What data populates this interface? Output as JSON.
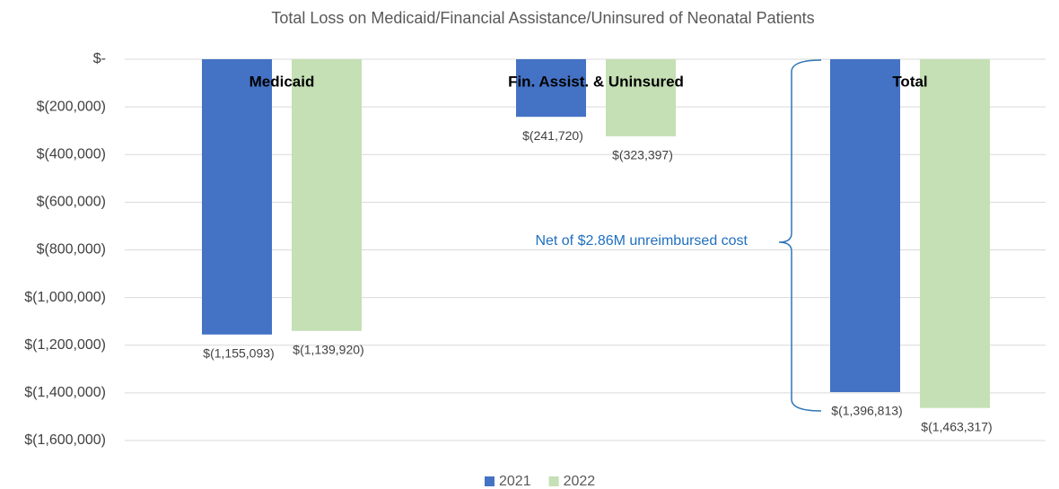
{
  "chart_data": {
    "type": "bar",
    "title": "Total Loss on Medicaid/Financial Assistance/Uninsured of Neonatal Patients",
    "categories": [
      "Medicaid",
      "Fin. Assist. & Uninsured",
      "Total"
    ],
    "series": [
      {
        "name": "2021",
        "color": "#4472c4",
        "values": [
          -1155093,
          -241720,
          -1396813
        ],
        "value_labels": [
          "$(1,155,093)",
          "$(241,720)",
          "$(1,396,813)"
        ]
      },
      {
        "name": "2022",
        "color": "#c5e0b4",
        "values": [
          -1139920,
          -323397,
          -1463317
        ],
        "value_labels": [
          "$(1,139,920)",
          "$(323,397)",
          "$(1,463,317)"
        ]
      }
    ],
    "ylim": [
      -1600000,
      0
    ],
    "yticks": [
      {
        "value": 0,
        "label": "$-"
      },
      {
        "value": -200000,
        "label": "$(200,000)"
      },
      {
        "value": -400000,
        "label": "$(400,000)"
      },
      {
        "value": -600000,
        "label": "$(600,000)"
      },
      {
        "value": -800000,
        "label": "$(800,000)"
      },
      {
        "value": -1000000,
        "label": "$(1,000,000)"
      },
      {
        "value": -1200000,
        "label": "$(1,200,000)"
      },
      {
        "value": -1400000,
        "label": "$(1,400,000)"
      },
      {
        "value": -1600000,
        "label": "$(1,600,000)"
      }
    ],
    "grid": true,
    "legend": "bottom",
    "annotation": "Net of $2.86M unreimbursed cost"
  }
}
